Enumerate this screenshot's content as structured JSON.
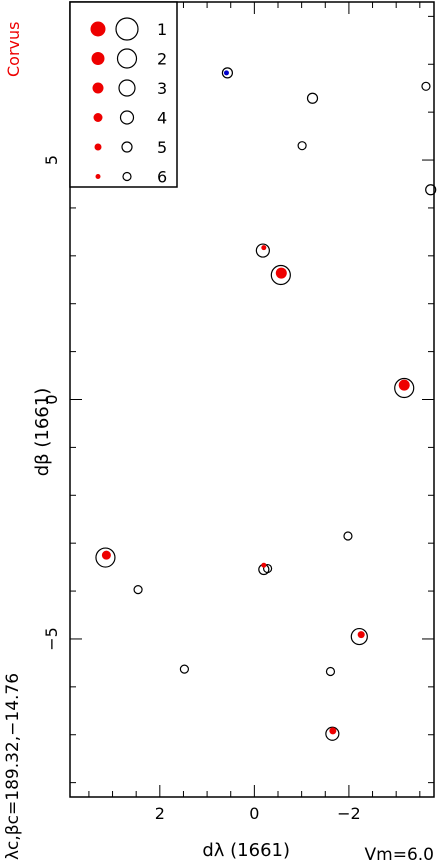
{
  "constellation_label": "Corvus",
  "center_label": "λc,βc=189.32,−14.76",
  "magnitude_label": "Vm=6.0",
  "chart_data": {
    "type": "scatter",
    "title": "",
    "xlabel": "dλ (1661)",
    "ylabel": "dβ (1661)",
    "xlim": [
      3.9,
      -3.8
    ],
    "ylim": [
      -8.3,
      8.3
    ],
    "x_ticks": [
      2,
      0,
      -2
    ],
    "x_tick_labels": [
      "2",
      "0",
      "−2"
    ],
    "y_ticks": [
      -5,
      0,
      5
    ],
    "y_tick_labels": [
      "−5",
      "0",
      "5"
    ],
    "grid": false,
    "legend": {
      "placement": "top-left",
      "entries": [
        {
          "magnitude": 1,
          "label": "1"
        },
        {
          "magnitude": 2,
          "label": "2"
        },
        {
          "magnitude": 3,
          "label": "3"
        },
        {
          "magnitude": 4,
          "label": "4"
        },
        {
          "magnitude": 5,
          "label": "5"
        },
        {
          "magnitude": 6,
          "label": "6"
        }
      ]
    },
    "colors": {
      "filled": "#ee0000",
      "highlight": "#0000cc",
      "outline": "#000000"
    },
    "series": [
      {
        "name": "open",
        "points": [
          {
            "x": 0.57,
            "y": 6.82,
            "mag": 5
          },
          {
            "x": -1.23,
            "y": 6.29,
            "mag": 5
          },
          {
            "x": -3.63,
            "y": 6.54,
            "mag": 6
          },
          {
            "x": -1.01,
            "y": 5.3,
            "mag": 6
          },
          {
            "x": -3.73,
            "y": 4.38,
            "mag": 5
          },
          {
            "x": -0.18,
            "y": 3.11,
            "mag": 4
          },
          {
            "x": -0.56,
            "y": 2.6,
            "mag": 2
          },
          {
            "x": -3.17,
            "y": 0.24,
            "mag": 2
          },
          {
            "x": 3.15,
            "y": -3.3,
            "mag": 2
          },
          {
            "x": -1.98,
            "y": -2.85,
            "mag": 6
          },
          {
            "x": 2.46,
            "y": -3.97,
            "mag": 6
          },
          {
            "x": -0.2,
            "y": -3.55,
            "mag": 5
          },
          {
            "x": -0.28,
            "y": -3.53,
            "mag": 6
          },
          {
            "x": -2.22,
            "y": -4.95,
            "mag": 3
          },
          {
            "x": 1.48,
            "y": -5.63,
            "mag": 6
          },
          {
            "x": -1.61,
            "y": -5.68,
            "mag": 6
          },
          {
            "x": -1.65,
            "y": -6.98,
            "mag": 4
          }
        ]
      },
      {
        "name": "filled",
        "points": [
          {
            "x": -0.2,
            "y": 3.17,
            "mag": 6
          },
          {
            "x": -0.57,
            "y": 2.64,
            "mag": 3
          },
          {
            "x": -3.17,
            "y": 0.3,
            "mag": 3
          },
          {
            "x": 3.13,
            "y": -3.25,
            "mag": 4
          },
          {
            "x": -0.2,
            "y": -3.46,
            "mag": 6
          },
          {
            "x": -2.26,
            "y": -4.91,
            "mag": 5
          },
          {
            "x": -1.66,
            "y": -6.92,
            "mag": 5
          }
        ]
      },
      {
        "name": "highlight",
        "points": [
          {
            "x": 0.59,
            "y": 6.82,
            "mag": 6
          }
        ]
      }
    ]
  }
}
